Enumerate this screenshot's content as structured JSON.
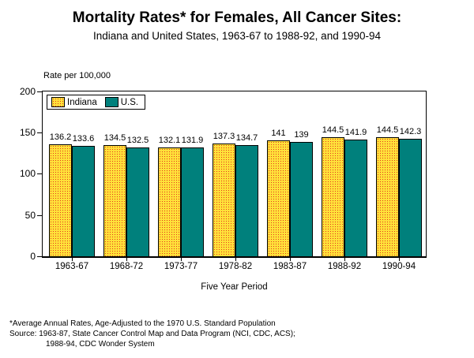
{
  "title": "Mortality Rates* for Females, All Cancer Sites:",
  "subtitle": "Indiana and United States, 1963-67 to 1988-92, and 1990-94",
  "chart_data": {
    "type": "bar",
    "title": "Mortality Rates* for Females, All Cancer Sites:",
    "subtitle": "Indiana and United States, 1963-67 to 1988-92, and 1990-94",
    "y_axis_label": "Rate per 100,000",
    "x_axis_label": "Five Year Period",
    "ylim": [
      0,
      200
    ],
    "yticks": [
      0,
      50,
      100,
      150,
      200
    ],
    "grid": "off",
    "legend_position": "inside-top-left",
    "categories": [
      "1963-67",
      "1968-72",
      "1973-77",
      "1978-82",
      "1983-87",
      "1988-92",
      "1990-94"
    ],
    "series": [
      {
        "name": "Indiana",
        "values": [
          136.2,
          134.5,
          132.1,
          137.3,
          141,
          144.5,
          144.5
        ]
      },
      {
        "name": "U.S.",
        "values": [
          133.6,
          132.5,
          131.9,
          134.7,
          139,
          141.9,
          142.3
        ]
      }
    ]
  },
  "footnotes": {
    "line1": "*Average Annual Rates, Age-Adjusted to the 1970 U.S. Standard Population",
    "line2": "Source:  1963-87,  State Cancer Control Map and Data Program (NCI, CDC, ACS);",
    "line3": "1988-94, CDC Wonder System"
  },
  "colors": {
    "indiana_fill_yellow": "#FFE03A",
    "indiana_dot_red": "#E2391B",
    "us_teal": "#00807C",
    "text": "#000000",
    "background": "#FFFFFF"
  }
}
